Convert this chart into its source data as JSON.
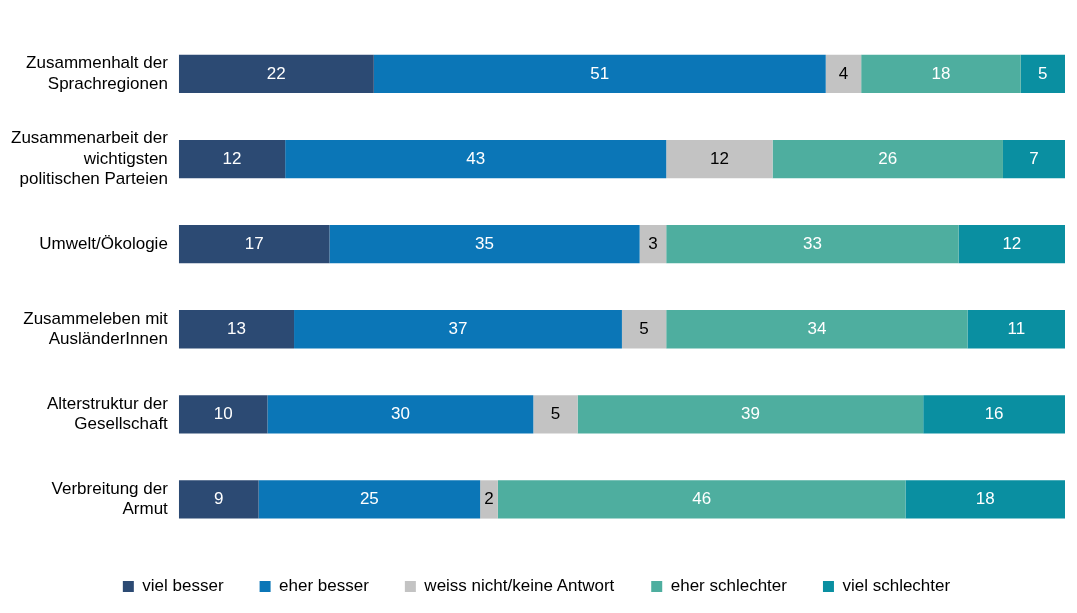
{
  "chart_data": {
    "type": "bar",
    "orientation": "horizontal",
    "stacked": true,
    "data_labels": true,
    "legend": "bottom",
    "grid": false,
    "categories": [
      "Zusammenhalt der Sprachregionen",
      "Zusammenarbeit der wichtigsten politischen Parteien",
      "Umwelt/Ökologie",
      "Zusammeleben mit AusländerInnen",
      "Alterstruktur der Gesellschaft",
      "Verbreitung der Armut"
    ],
    "series": [
      {
        "name": "viel besser",
        "color": "#2c4a73",
        "values": [
          22,
          12,
          17,
          13,
          10,
          9
        ]
      },
      {
        "name": "eher besser",
        "color": "#0b76b7",
        "values": [
          51,
          43,
          35,
          37,
          30,
          25
        ]
      },
      {
        "name": "weiss nicht/keine Antwort",
        "color": "#c3c3c3",
        "values": [
          4,
          12,
          3,
          5,
          5,
          2
        ]
      },
      {
        "name": "eher schlechter",
        "color": "#4eae9f",
        "values": [
          18,
          26,
          33,
          34,
          39,
          46
        ]
      },
      {
        "name": "viel schlechter",
        "color": "#0a8fa1",
        "values": [
          5,
          7,
          12,
          11,
          16,
          18
        ]
      }
    ]
  }
}
